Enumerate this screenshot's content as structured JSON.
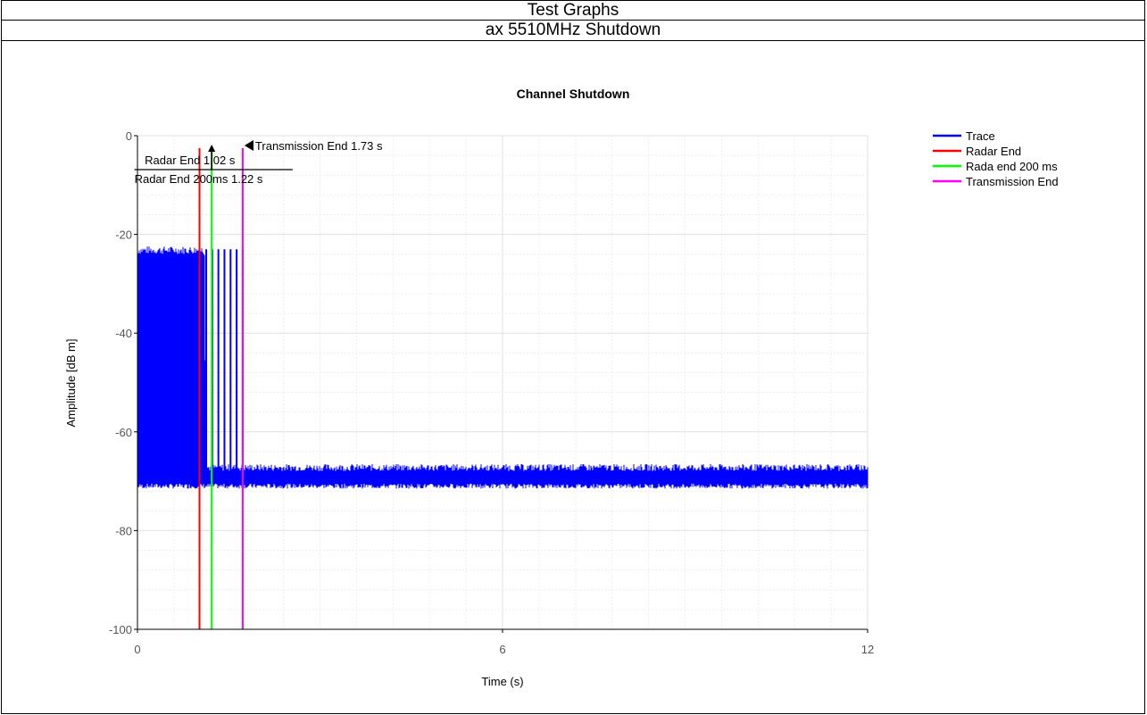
{
  "header": {
    "title": "Test Graphs",
    "subtitle": "ax 5510MHz Shutdown"
  },
  "chart_data": {
    "type": "line",
    "title": "Channel Shutdown",
    "xlabel": "Time (s)",
    "ylabel": "Amplitude [dB m]",
    "xlim": [
      0,
      12
    ],
    "ylim": [
      -100,
      0
    ],
    "x_ticks": [
      0,
      6,
      12
    ],
    "y_ticks": [
      0,
      -20,
      -40,
      -60,
      -80,
      -100
    ],
    "grid": true,
    "legend_position": "top-right",
    "series": [
      {
        "name": "Trace",
        "color": "#0000ff",
        "x": [
          0,
          1.1,
          1.13,
          1.73,
          1.76,
          12
        ],
        "y_upper": [
          -23.5,
          -23.5,
          -67.5,
          -67.5,
          -67.5,
          -67.5
        ],
        "y_lower": [
          -71,
          -71,
          -71,
          -71,
          -71,
          -71
        ],
        "burst_pulses_x": [
          1.13,
          1.23,
          1.33,
          1.43,
          1.53,
          1.63,
          1.73
        ],
        "burst_pulse_peak": -23
      },
      {
        "name": "Radar End",
        "color": "#ff0000",
        "x": 1.02
      },
      {
        "name": "Rada end 200 ms",
        "color": "#00ff00",
        "x": 1.22
      },
      {
        "name": "Transmission End",
        "color": "#ff00ff",
        "x": 1.73
      }
    ],
    "annotations": [
      {
        "text": "Radar End 1.02 s",
        "x": 1.02
      },
      {
        "text": "Radar End 200ms 1.22 s",
        "x": 1.22
      },
      {
        "text": "Transmission End 1.73 s",
        "x": 1.73
      }
    ]
  }
}
